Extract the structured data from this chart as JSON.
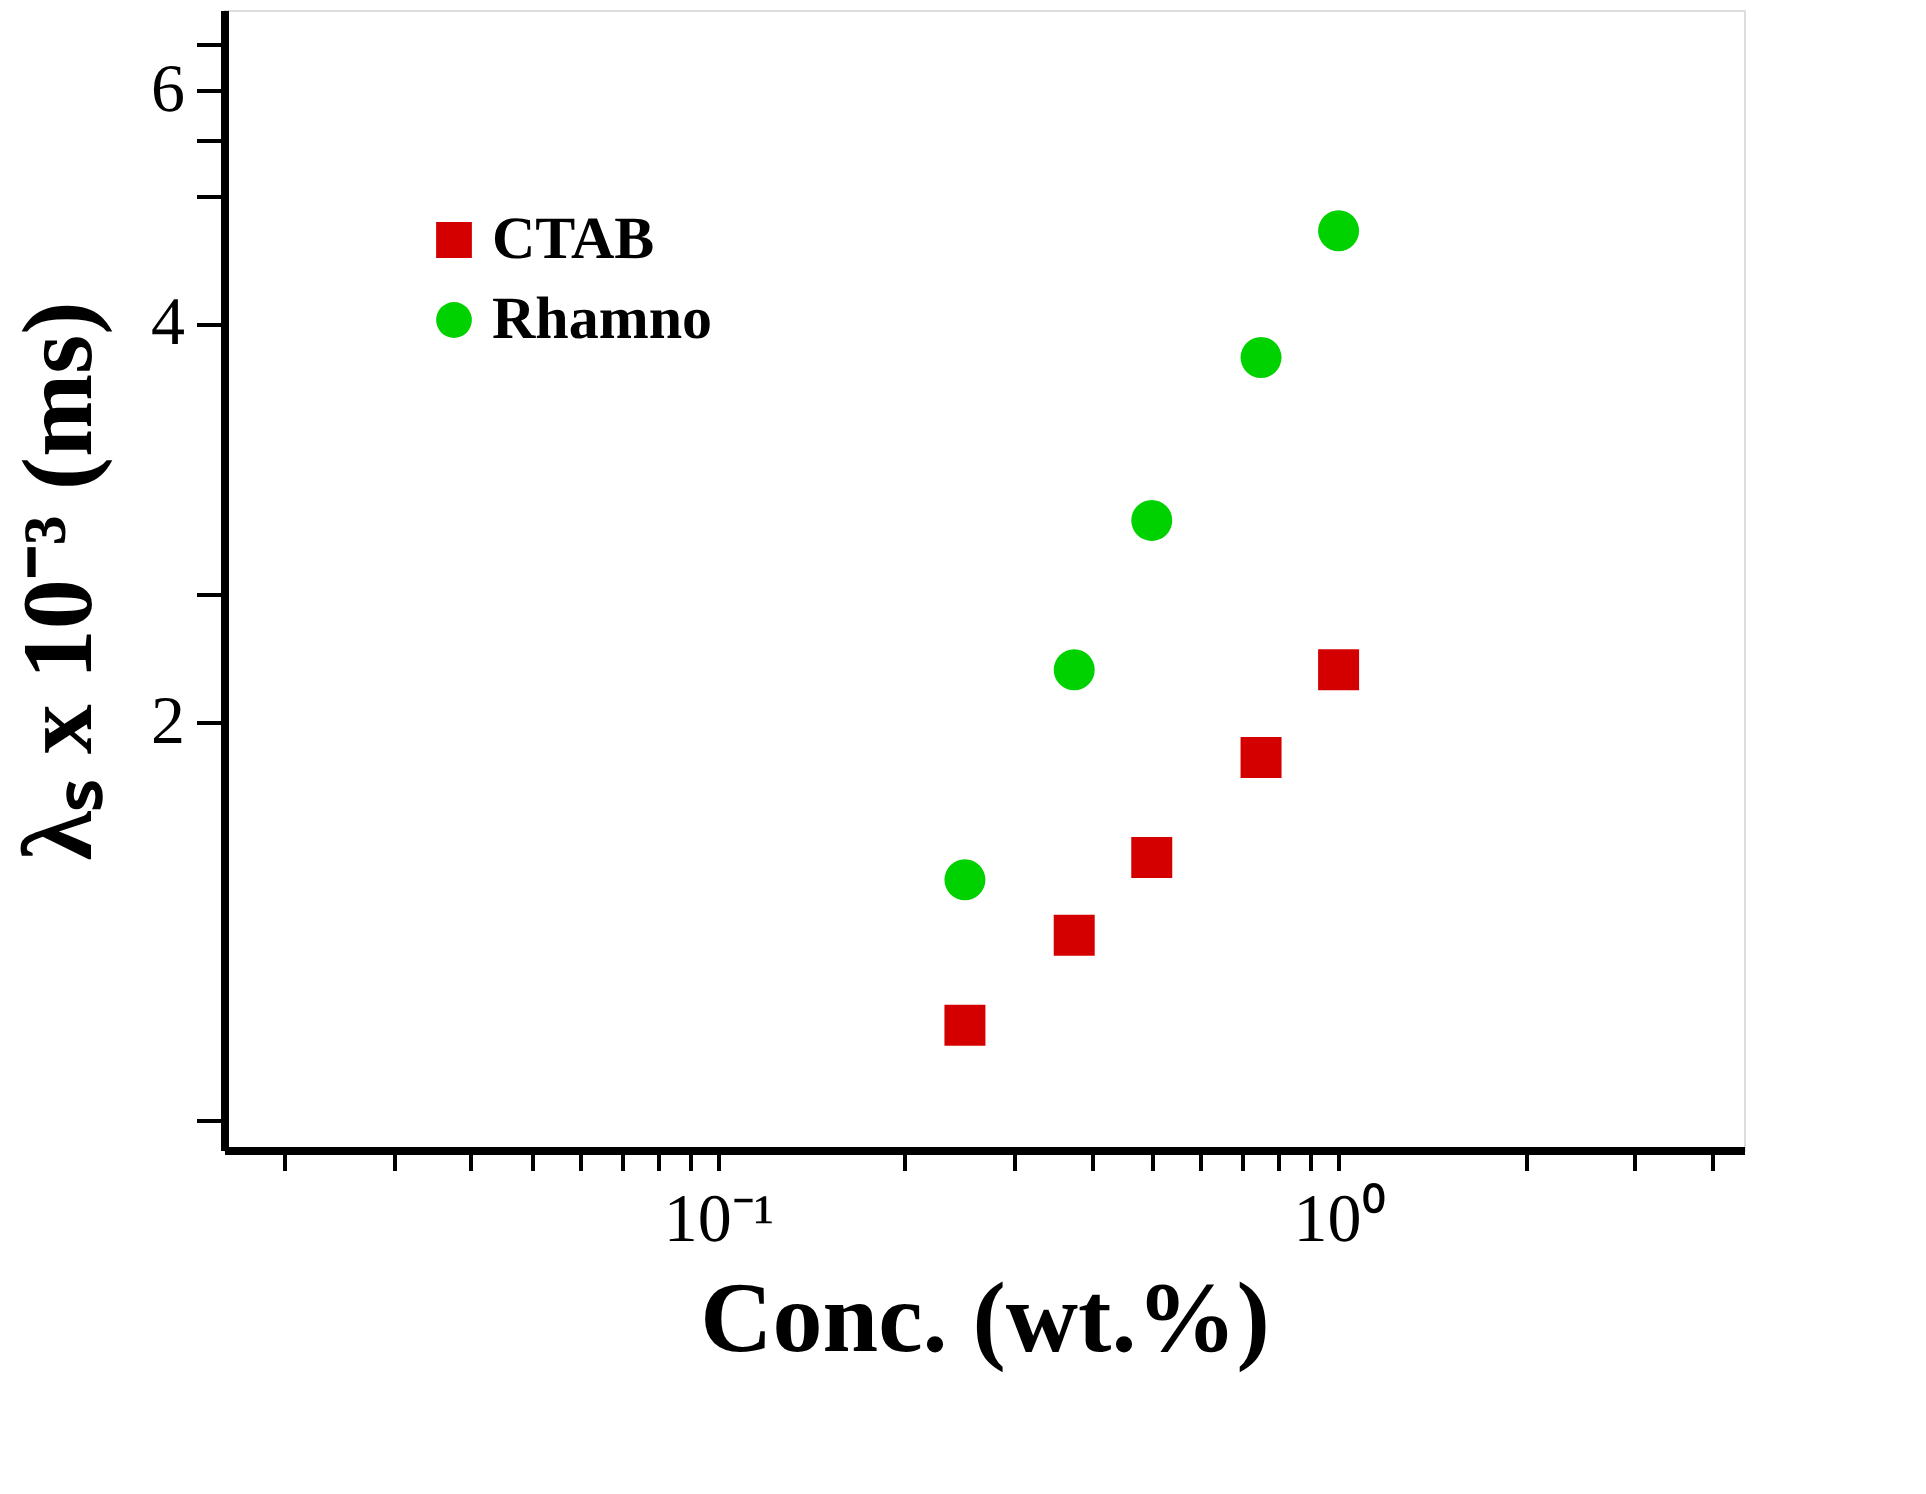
{
  "chart_data": {
    "type": "scatter",
    "xlabel": "Conc.  (wt.%)",
    "ylabel": "λₛ x 10⁻³ (ms)",
    "log": "xy",
    "grid": false,
    "legend": "top left",
    "xlim": [
      0.016,
      4.5
    ],
    "ylim": [
      0.95,
      6.9
    ],
    "xticks": [
      {
        "value": 0.02,
        "label": null
      },
      {
        "value": 0.03,
        "label": null
      },
      {
        "value": 0.04,
        "label": null
      },
      {
        "value": 0.05,
        "label": null
      },
      {
        "value": 0.06,
        "label": null
      },
      {
        "value": 0.07,
        "label": null
      },
      {
        "value": 0.08,
        "label": null
      },
      {
        "value": 0.09,
        "label": null
      },
      {
        "value": 0.1,
        "label": "10⁻¹"
      },
      {
        "value": 0.2,
        "label": null
      },
      {
        "value": 0.3,
        "label": null
      },
      {
        "value": 0.4,
        "label": null
      },
      {
        "value": 0.5,
        "label": null
      },
      {
        "value": 0.6,
        "label": null
      },
      {
        "value": 0.7,
        "label": null
      },
      {
        "value": 0.8,
        "label": null
      },
      {
        "value": 0.9,
        "label": null
      },
      {
        "value": 1,
        "label": "10⁰"
      },
      {
        "value": 2,
        "label": null
      },
      {
        "value": 3,
        "label": null
      },
      {
        "value": 4,
        "label": null
      }
    ],
    "yticks": [
      {
        "value": 1,
        "label": null
      },
      2,
      {
        "value": 2.5,
        "label": null
      },
      4,
      {
        "value": 5,
        "label": null
      },
      {
        "value": 5.5,
        "label": null
      },
      6,
      {
        "value": 6.5,
        "label": null
      }
    ],
    "x": [
      0.25,
      0.375,
      0.5,
      0.75,
      1.0
    ],
    "series": [
      {
        "name": "CTAB",
        "color": "#d40000",
        "marker": "square",
        "values": [
          1.18,
          1.38,
          1.58,
          1.88,
          2.19
        ]
      },
      {
        "name": "Rhamno",
        "color": "#00d200",
        "marker": "circle",
        "values": [
          1.52,
          2.19,
          2.84,
          3.77,
          4.7
        ]
      }
    ]
  }
}
